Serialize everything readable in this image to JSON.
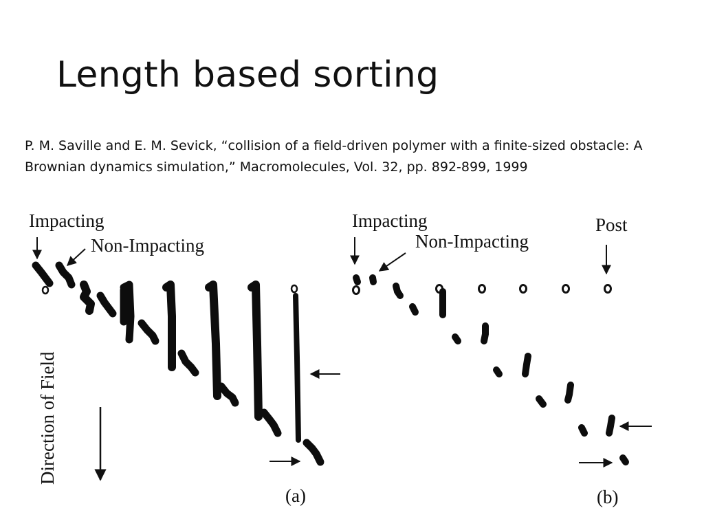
{
  "slide": {
    "title": "Length based sorting",
    "citation": "P. M. Saville and E. M. Sevick, “collision of a field-driven polymer with a finite-sized obstacle: A Brownian dynamics simulation,” Macromolecules, Vol. 32, pp. 892-899, 1999"
  },
  "figure": {
    "panel_a": {
      "label": "(a)",
      "impacting_label": "Impacting",
      "non_impacting_label": "Non-Impacting",
      "field_label": "Direction of Field"
    },
    "panel_b": {
      "label": "(b)",
      "impacting_label": "Impacting",
      "non_impacting_label": "Non-Impacting",
      "post_label": "Post"
    }
  }
}
